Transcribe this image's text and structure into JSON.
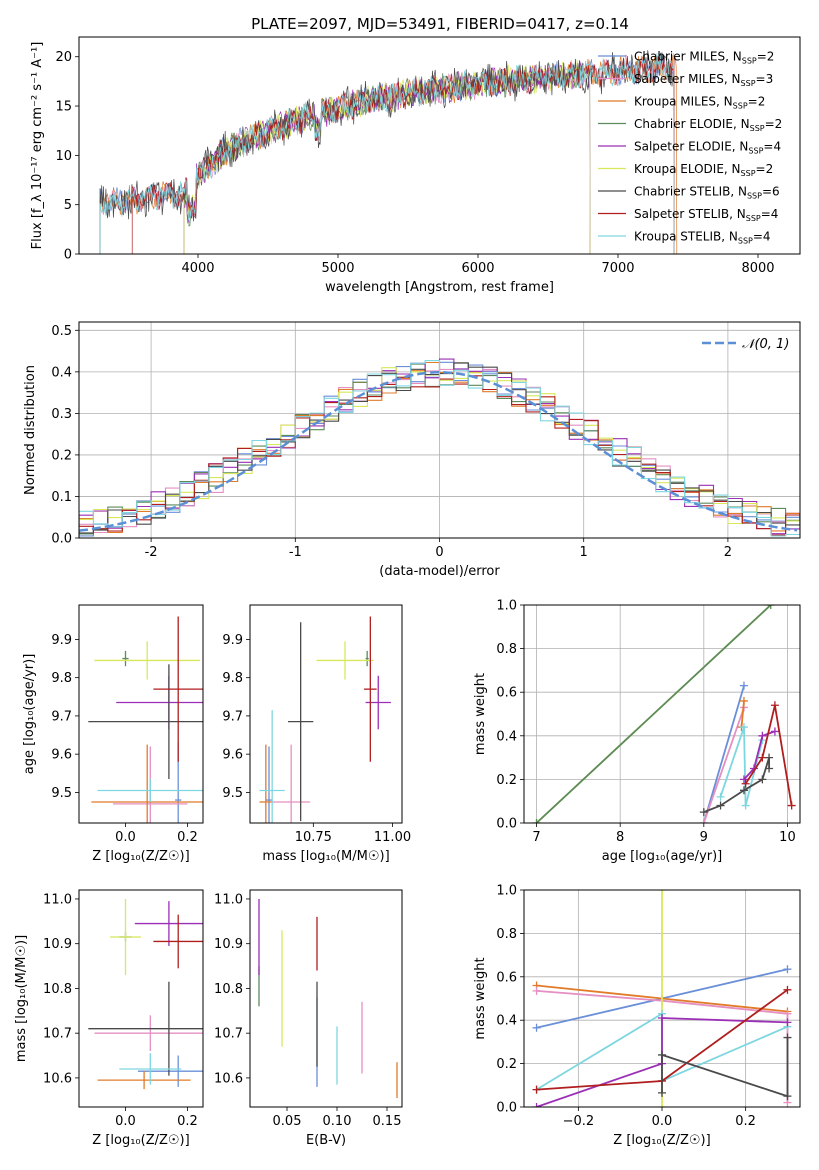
{
  "figure": {
    "title": "PLATE=2097, MJD=53491, FIBERID=0417, z=0.14"
  },
  "palette": {
    "Chabrier MILES": "#6a8fd8",
    "Salpeter MILES": "#e58fc2",
    "Kroupa MILES": "#e07b2a",
    "Chabrier ELODIE": "#5c8a5c",
    "Salpeter ELODIE": "#9b2fb5",
    "Kroupa ELODIE": "#d8e85a",
    "Chabrier STELIB": "#4a4a4a",
    "Salpeter STELIB": "#b01e1e",
    "Kroupa STELIB": "#7ed6e0",
    "normal_curve": "#5b8fd6"
  },
  "chart_data": [
    {
      "id": "spectrum",
      "type": "line",
      "title": "PLATE=2097, MJD=53491, FIBERID=0417, z=0.14",
      "xlabel": "wavelength [Angstrom, rest frame]",
      "ylabel": "Flux [f_λ 10⁻¹⁷ erg cm⁻² s⁻¹ A⁻¹]",
      "xlim": [
        3150,
        8300
      ],
      "ylim": [
        0,
        22
      ],
      "xticks": [
        4000,
        5000,
        6000,
        7000,
        8000
      ],
      "yticks": [
        0,
        5,
        10,
        15,
        20
      ],
      "legend_position": "right",
      "series": [
        {
          "name": "Chabrier MILES, N_SSP=2",
          "legend": "Chabrier MILES, N",
          "sub": "SSP",
          "count": "=2",
          "x_start": 3300,
          "x_end": 7400
        },
        {
          "name": "Salpeter MILES, N_SSP=3",
          "legend": "Salpeter MILES, N",
          "sub": "SSP",
          "count": "=3",
          "x_start": 3300,
          "x_end": 7400
        },
        {
          "name": "Kroupa MILES, N_SSP=2",
          "legend": "Kroupa MILES, N",
          "sub": "SSP",
          "count": "=2",
          "x_start": 3300,
          "x_end": 7420
        },
        {
          "name": "Chabrier ELODIE, N_SSP=2",
          "legend": "Chabrier ELODIE, N",
          "sub": "SSP",
          "count": "=2",
          "x_start": 3900,
          "x_end": 6800
        },
        {
          "name": "Salpeter ELODIE, N_SSP=4",
          "legend": "Salpeter ELODIE, N",
          "sub": "SSP",
          "count": "=4",
          "x_start": 3900,
          "x_end": 6800
        },
        {
          "name": "Kroupa ELODIE, N_SSP=2",
          "legend": "Kroupa ELODIE, N",
          "sub": "SSP",
          "count": "=2",
          "x_start": 3900,
          "x_end": 6800
        },
        {
          "name": "Chabrier STELIB, N_SSP=6",
          "legend": "Chabrier STELIB, N",
          "sub": "SSP",
          "count": "=6",
          "x_start": 3300,
          "x_end": 7400
        },
        {
          "name": "Salpeter STELIB, N_SSP=4",
          "legend": "Salpeter STELIB, N",
          "sub": "SSP",
          "count": "=4",
          "x_start": 3530,
          "x_end": 7400
        },
        {
          "name": "Kroupa STELIB, N_SSP=4",
          "legend": "Kroupa STELIB, N",
          "sub": "SSP",
          "count": "=4",
          "x_start": 3300,
          "x_end": 7400
        }
      ],
      "continuum": {
        "x": [
          3300,
          3600,
          3700,
          3900,
          4000,
          4200,
          4500,
          4800,
          5200,
          5600,
          6000,
          6400,
          6800,
          7200,
          7400
        ],
        "y": [
          5.2,
          5.5,
          6.0,
          6.0,
          8.0,
          10.5,
          12.5,
          14.0,
          15.5,
          16.5,
          17.2,
          17.8,
          18.3,
          18.8,
          19.0
        ]
      }
    },
    {
      "id": "residual_histograms",
      "type": "line",
      "xlabel": "(data-model)/error",
      "ylabel": "Normed distribution",
      "xlim": [
        -2.5,
        2.5
      ],
      "ylim": [
        0,
        0.52
      ],
      "xticks": [
        -2,
        -1,
        0,
        1,
        2
      ],
      "yticks": [
        0.0,
        0.1,
        0.2,
        0.3,
        0.4,
        0.5
      ],
      "grid": true,
      "legend_position": "top-right",
      "legend": "𝒩(0, 1)",
      "bin_width": 0.1,
      "curve": "normal pdf, mean 0, sigma 1"
    },
    {
      "id": "age_vs_Z",
      "type": "scatter",
      "xlabel": "Z [log₁₀(Z/Z☉)]",
      "ylabel": "age  [log₁₀(age/yr)]",
      "xlim": [
        -0.15,
        0.25
      ],
      "ylim": [
        9.42,
        9.99
      ],
      "xticks": [
        0.0,
        0.2
      ],
      "yticks": [
        9.5,
        9.6,
        9.7,
        9.8,
        9.9
      ],
      "points": [
        {
          "model": "Chabrier MILES",
          "x": 0.17,
          "y": 9.48,
          "xerr": 0.01,
          "yerr": 0.15
        },
        {
          "model": "Salpeter MILES",
          "x": 0.08,
          "y": 9.47,
          "xerr": 0.12,
          "yerr": 0.15
        },
        {
          "model": "Kroupa MILES",
          "x": 0.07,
          "y": 9.475,
          "xerr": 0.18,
          "yerr": 0.15
        },
        {
          "model": "Chabrier ELODIE",
          "x": 0.0,
          "y": 9.85,
          "xerr": 0.01,
          "yerr": 0.02
        },
        {
          "model": "Salpeter ELODIE",
          "x": 0.14,
          "y": 9.735,
          "xerr": 0.17,
          "yerr": 0.07
        },
        {
          "model": "Kroupa ELODIE",
          "x": 0.07,
          "y": 9.845,
          "xerr": 0.17,
          "yerr": 0.05
        },
        {
          "model": "Chabrier STELIB",
          "x": 0.14,
          "y": 9.685,
          "xerr": 0.26,
          "yerr": 0.15
        },
        {
          "model": "Salpeter STELIB",
          "x": 0.17,
          "y": 9.77,
          "xerr": 0.08,
          "yerr": 0.19
        },
        {
          "model": "Kroupa STELIB",
          "x": 0.08,
          "y": 9.505,
          "xerr": 0.17,
          "yerr": 0.03
        }
      ]
    },
    {
      "id": "age_vs_mass",
      "type": "scatter",
      "xlabel": "mass [log₁₀(M/M☉)]",
      "ylabel": "",
      "xlim": [
        10.55,
        11.03
      ],
      "ylim": [
        9.42,
        9.99
      ],
      "xticks": [
        10.75,
        11.0
      ],
      "yticks": [
        9.5,
        9.6,
        9.7,
        9.8,
        9.9
      ],
      "points": [
        {
          "model": "Chabrier MILES",
          "x": 10.61,
          "y": 9.48,
          "xerr": 0.01,
          "yerr": 0.14
        },
        {
          "model": "Salpeter MILES",
          "x": 10.68,
          "y": 9.475,
          "xerr": 0.06,
          "yerr": 0.15
        },
        {
          "model": "Kroupa MILES",
          "x": 10.6,
          "y": 9.475,
          "xerr": 0.02,
          "yerr": 0.15
        },
        {
          "model": "Chabrier ELODIE",
          "x": 10.92,
          "y": 9.85,
          "xerr": 0.005,
          "yerr": 0.02
        },
        {
          "model": "Salpeter ELODIE",
          "x": 10.955,
          "y": 9.735,
          "xerr": 0.04,
          "yerr": 0.07
        },
        {
          "model": "Kroupa ELODIE",
          "x": 10.85,
          "y": 9.845,
          "xerr": 0.09,
          "yerr": 0.05
        },
        {
          "model": "Chabrier STELIB",
          "x": 10.71,
          "y": 9.685,
          "xerr": 0.04,
          "yerr": 0.26
        },
        {
          "model": "Salpeter STELIB",
          "x": 10.93,
          "y": 9.77,
          "xerr": 0.02,
          "yerr": 0.19
        },
        {
          "model": "Kroupa STELIB",
          "x": 10.62,
          "y": 9.505,
          "xerr": 0.04,
          "yerr": 0.21
        }
      ]
    },
    {
      "id": "mass_weight_vs_age",
      "type": "line",
      "xlabel": "age  [log₁₀(age/yr)]",
      "ylabel": "mass weight",
      "xlim": [
        6.85,
        10.15
      ],
      "ylim": [
        0,
        1
      ],
      "xticks": [
        7,
        8,
        9,
        10
      ],
      "yticks": [
        0.0,
        0.2,
        0.4,
        0.6,
        0.8,
        1.0
      ],
      "grid": true,
      "series": [
        {
          "model": "Kroupa ELODIE",
          "points": [
            [
              7.0,
              0.0
            ],
            [
              9.8,
              1.0
            ]
          ]
        },
        {
          "model": "Chabrier ELODIE",
          "points": [
            [
              7.0,
              0.0
            ],
            [
              9.8,
              1.0
            ]
          ]
        },
        {
          "model": "Chabrier MILES",
          "points": [
            [
              9.0,
              0.0
            ],
            [
              9.48,
              0.63
            ]
          ]
        },
        {
          "model": "Salpeter MILES",
          "points": [
            [
              9.0,
              0.0
            ],
            [
              9.48,
              0.53
            ]
          ]
        },
        {
          "model": "Kroupa MILES",
          "points": [
            [
              9.45,
              0.44
            ],
            [
              9.48,
              0.56
            ]
          ]
        },
        {
          "model": "Kroupa STELIB",
          "points": [
            [
              9.2,
              0.12
            ],
            [
              9.48,
              0.44
            ],
            [
              9.5,
              0.08
            ],
            [
              9.7,
              0.38
            ]
          ]
        },
        {
          "model": "Salpeter ELODIE",
          "points": [
            [
              9.48,
              0.2
            ],
            [
              9.6,
              0.25
            ],
            [
              9.7,
              0.4
            ],
            [
              9.85,
              0.42
            ]
          ]
        },
        {
          "model": "Salpeter STELIB",
          "points": [
            [
              9.5,
              0.18
            ],
            [
              9.7,
              0.3
            ],
            [
              9.85,
              0.54
            ],
            [
              10.05,
              0.08
            ]
          ]
        },
        {
          "model": "Chabrier STELIB",
          "points": [
            [
              9.0,
              0.05
            ],
            [
              9.2,
              0.08
            ],
            [
              9.48,
              0.15
            ],
            [
              9.7,
              0.2
            ],
            [
              9.78,
              0.3
            ],
            [
              9.78,
              0.25
            ]
          ]
        }
      ]
    },
    {
      "id": "mass_vs_Z",
      "type": "scatter",
      "xlabel": "Z [log₁₀(Z/Z☉)]",
      "ylabel": "mass [log₁₀(M/M☉)]",
      "xlim": [
        -0.15,
        0.25
      ],
      "ylim": [
        10.535,
        11.02
      ],
      "xticks": [
        0.0,
        0.2
      ],
      "yticks": [
        10.6,
        10.7,
        10.8,
        10.9,
        11.0
      ],
      "points": [
        {
          "model": "Chabrier MILES",
          "x": 0.17,
          "y": 10.615,
          "xerr": 0.13,
          "yerr": 0.035
        },
        {
          "model": "Salpeter MILES",
          "x": 0.08,
          "y": 10.7,
          "xerr": 0.18,
          "yerr": 0.04
        },
        {
          "model": "Kroupa MILES",
          "x": 0.06,
          "y": 10.595,
          "xerr": 0.15,
          "yerr": 0.02
        },
        {
          "model": "Chabrier ELODIE",
          "x": 0.0,
          "y": 10.915,
          "xerr": 0.02,
          "yerr": 0.01
        },
        {
          "model": "Salpeter ELODIE",
          "x": 0.14,
          "y": 10.945,
          "xerr": 0.11,
          "yerr": 0.05
        },
        {
          "model": "Kroupa ELODIE",
          "x": 0.0,
          "y": 10.915,
          "xerr": 0.05,
          "yerr": 0.085
        },
        {
          "model": "Chabrier STELIB",
          "x": 0.14,
          "y": 10.71,
          "xerr": 0.26,
          "yerr": 0.105
        },
        {
          "model": "Salpeter STELIB",
          "x": 0.17,
          "y": 10.905,
          "xerr": 0.08,
          "yerr": 0.06
        },
        {
          "model": "Kroupa STELIB",
          "x": 0.08,
          "y": 10.62,
          "xerr": 0.1,
          "yerr": 0.035
        }
      ]
    },
    {
      "id": "mass_vs_EBV",
      "type": "scatter",
      "xlabel": "E(B-V)",
      "ylabel": "",
      "xlim": [
        0.013,
        0.165
      ],
      "ylim": [
        10.535,
        11.02
      ],
      "xticks": [
        0.05,
        0.1,
        0.15
      ],
      "yticks": [
        10.6,
        10.7,
        10.8,
        10.9,
        11.0
      ],
      "points": [
        {
          "model": "Chabrier MILES",
          "x": 0.08,
          "y": 10.68,
          "xerr": 0.0,
          "yerr": 0.1
        },
        {
          "model": "Salpeter MILES",
          "x": 0.125,
          "y": 10.69,
          "xerr": 0.0,
          "yerr": 0.08
        },
        {
          "model": "Kroupa MILES",
          "x": 0.16,
          "y": 10.595,
          "xerr": 0.0,
          "yerr": 0.04
        },
        {
          "model": "Chabrier ELODIE",
          "x": 0.022,
          "y": 10.805,
          "xerr": 0.0,
          "yerr": 0.045
        },
        {
          "model": "Salpeter ELODIE",
          "x": 0.022,
          "y": 10.915,
          "xerr": 0.0,
          "yerr": 0.085
        },
        {
          "model": "Kroupa ELODIE",
          "x": 0.045,
          "y": 10.8,
          "xerr": 0.0,
          "yerr": 0.13
        },
        {
          "model": "Chabrier STELIB",
          "x": 0.08,
          "y": 10.72,
          "xerr": 0.0,
          "yerr": 0.095
        },
        {
          "model": "Salpeter STELIB",
          "x": 0.08,
          "y": 10.9,
          "xerr": 0.0,
          "yerr": 0.06
        },
        {
          "model": "Kroupa STELIB",
          "x": 0.1,
          "y": 10.65,
          "xerr": 0.0,
          "yerr": 0.065
        }
      ]
    },
    {
      "id": "mass_weight_vs_Z",
      "type": "line",
      "xlabel": "Z [log₁₀(Z/Z☉)]",
      "ylabel": "mass weight",
      "xlim": [
        -0.33,
        0.33
      ],
      "ylim": [
        0,
        1
      ],
      "xticks": [
        -0.2,
        0.0,
        0.2
      ],
      "yticks": [
        0.0,
        0.2,
        0.4,
        0.6,
        0.8,
        1.0
      ],
      "grid": true,
      "series": [
        {
          "model": "Chabrier MILES",
          "points": [
            [
              -0.3,
              0.365
            ],
            [
              0.0,
              0.5
            ],
            [
              0.3,
              0.635
            ]
          ]
        },
        {
          "model": "Kroupa MILES",
          "points": [
            [
              -0.3,
              0.56
            ],
            [
              0.0,
              0.5
            ],
            [
              0.3,
              0.44
            ]
          ]
        },
        {
          "model": "Salpeter MILES",
          "points": [
            [
              -0.3,
              0.535
            ],
            [
              0.0,
              0.49
            ],
            [
              0.3,
              0.43
            ],
            [
              0.3,
              0.02
            ]
          ]
        },
        {
          "model": "Kroupa ELODIE",
          "points": [
            [
              0.0,
              0.0
            ],
            [
              0.0,
              1.0
            ]
          ]
        },
        {
          "model": "Kroupa STELIB",
          "points": [
            [
              -0.3,
              0.08
            ],
            [
              0.0,
              0.43
            ],
            [
              0.0,
              0.12
            ],
            [
              0.3,
              0.37
            ]
          ]
        },
        {
          "model": "Salpeter ELODIE",
          "points": [
            [
              -0.3,
              0.0
            ],
            [
              0.0,
              0.2
            ],
            [
              0.0,
              0.41
            ],
            [
              0.3,
              0.39
            ]
          ]
        },
        {
          "model": "Salpeter STELIB",
          "points": [
            [
              -0.3,
              0.08
            ],
            [
              0.0,
              0.12
            ],
            [
              0.3,
              0.54
            ]
          ]
        },
        {
          "model": "Chabrier STELIB",
          "points": [
            [
              0.0,
              0.065
            ],
            [
              0.0,
              0.24
            ],
            [
              0.3,
              0.05
            ],
            [
              0.3,
              0.32
            ]
          ]
        }
      ]
    }
  ]
}
